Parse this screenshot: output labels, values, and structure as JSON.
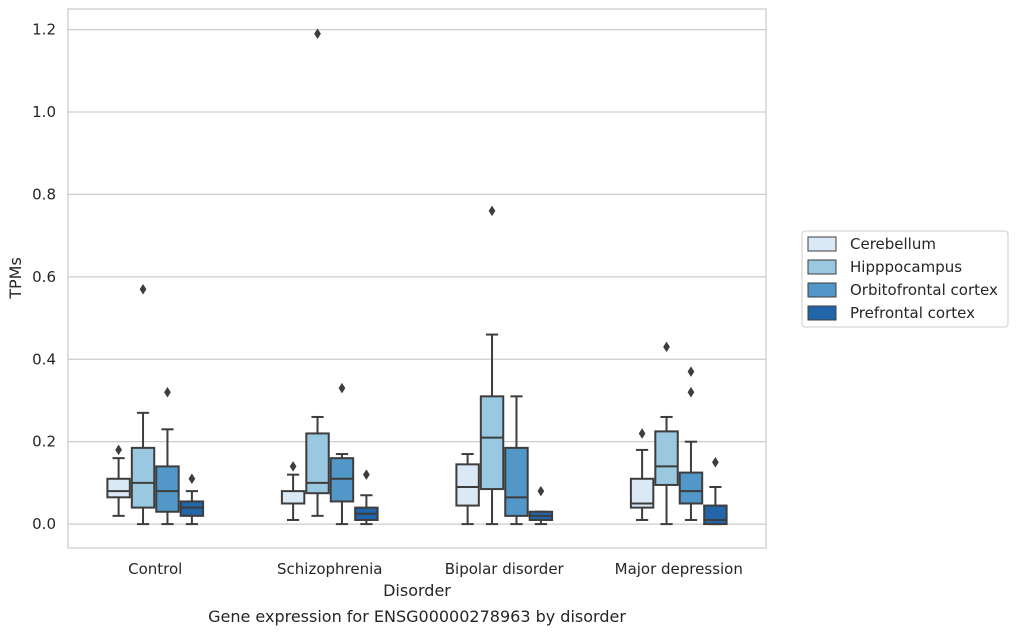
{
  "chart_data": {
    "type": "box",
    "title": "",
    "caption": "Gene expression for ENSG00000278963 by disorder",
    "xlabel": "Disorder",
    "ylabel": "TPMs",
    "ylim": [
      -0.058,
      1.25
    ],
    "yticks": [
      0.0,
      0.2,
      0.4,
      0.6,
      0.8,
      1.0,
      1.2
    ],
    "ytick_labels": [
      "0.0",
      "0.2",
      "0.4",
      "0.6",
      "0.8",
      "1.0",
      "1.2"
    ],
    "grid": "horizontal",
    "legend_position": "right",
    "categories": [
      "Control",
      "Schizophrenia",
      "Bipolar disorder",
      "Major depression"
    ],
    "series": [
      {
        "name": "Cerebellum",
        "color": "#dbe9f6",
        "boxes": [
          {
            "min": 0.02,
            "q1": 0.065,
            "median": 0.08,
            "q3": 0.11,
            "max": 0.16,
            "outliers": [
              0.18
            ]
          },
          {
            "min": 0.01,
            "q1": 0.05,
            "median": 0.05,
            "q3": 0.08,
            "max": 0.12,
            "outliers": [
              0.14
            ]
          },
          {
            "min": 0.0,
            "q1": 0.045,
            "median": 0.09,
            "q3": 0.145,
            "max": 0.17,
            "outliers": []
          },
          {
            "min": 0.01,
            "q1": 0.04,
            "median": 0.05,
            "q3": 0.11,
            "max": 0.18,
            "outliers": [
              0.22
            ]
          }
        ]
      },
      {
        "name": "Hipppocampus",
        "color": "#9ac8e0",
        "boxes": [
          {
            "min": 0.0,
            "q1": 0.04,
            "median": 0.1,
            "q3": 0.185,
            "max": 0.27,
            "outliers": [
              0.57
            ]
          },
          {
            "min": 0.02,
            "q1": 0.075,
            "median": 0.1,
            "q3": 0.22,
            "max": 0.26,
            "outliers": [
              1.19
            ]
          },
          {
            "min": 0.0,
            "q1": 0.085,
            "median": 0.21,
            "q3": 0.31,
            "max": 0.46,
            "outliers": [
              0.76
            ]
          },
          {
            "min": 0.0,
            "q1": 0.095,
            "median": 0.14,
            "q3": 0.225,
            "max": 0.26,
            "outliers": [
              0.43
            ]
          }
        ]
      },
      {
        "name": "Orbitofrontal cortex",
        "color": "#5198c8",
        "boxes": [
          {
            "min": 0.0,
            "q1": 0.03,
            "median": 0.08,
            "q3": 0.14,
            "max": 0.23,
            "outliers": [
              0.32
            ]
          },
          {
            "min": 0.0,
            "q1": 0.055,
            "median": 0.11,
            "q3": 0.16,
            "max": 0.17,
            "outliers": [
              0.33
            ]
          },
          {
            "min": 0.0,
            "q1": 0.02,
            "median": 0.065,
            "q3": 0.185,
            "max": 0.31,
            "outliers": []
          },
          {
            "min": 0.01,
            "q1": 0.05,
            "median": 0.08,
            "q3": 0.125,
            "max": 0.2,
            "outliers": [
              0.32,
              0.37
            ]
          }
        ]
      },
      {
        "name": "Prefrontal cortex",
        "color": "#2266a9",
        "boxes": [
          {
            "min": 0.0,
            "q1": 0.02,
            "median": 0.04,
            "q3": 0.055,
            "max": 0.08,
            "outliers": [
              0.11
            ]
          },
          {
            "min": 0.0,
            "q1": 0.01,
            "median": 0.025,
            "q3": 0.04,
            "max": 0.07,
            "outliers": [
              0.12
            ]
          },
          {
            "min": 0.0,
            "q1": 0.01,
            "median": 0.02,
            "q3": 0.03,
            "max": 0.03,
            "outliers": [
              0.08
            ]
          },
          {
            "min": 0.0,
            "q1": 0.0,
            "median": 0.01,
            "q3": 0.045,
            "max": 0.09,
            "outliers": [
              0.15
            ]
          }
        ]
      }
    ]
  }
}
